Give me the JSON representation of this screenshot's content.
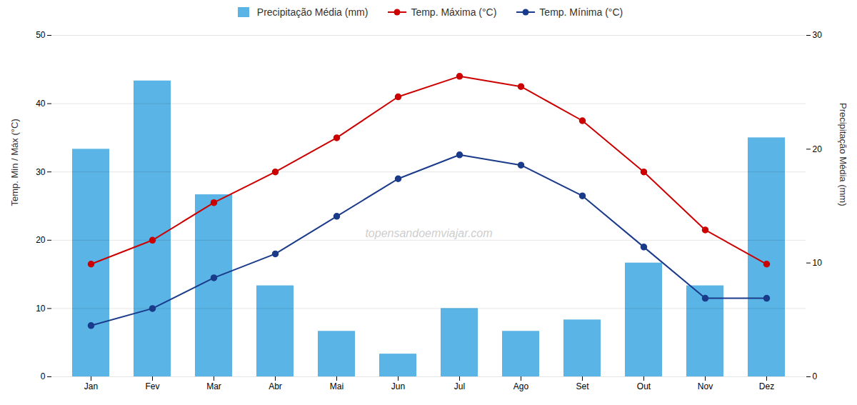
{
  "chart_data": {
    "type": "bar",
    "categories": [
      "Jan",
      "Fev",
      "Mar",
      "Abr",
      "Mai",
      "Jun",
      "Jul",
      "Ago",
      "Set",
      "Out",
      "Nov",
      "Dez"
    ],
    "series": [
      {
        "name": "Precipitação Média (mm)",
        "type": "bar",
        "axis": "y2",
        "color": "#5ab4e5",
        "values": [
          20,
          26,
          16,
          8,
          4,
          2,
          6,
          4,
          5,
          10,
          8,
          21
        ]
      },
      {
        "name": "Temp. Máxima (°C)",
        "type": "line",
        "marker": "circle",
        "color": "#cc0000",
        "values": [
          16.5,
          20,
          25.5,
          30,
          35,
          41,
          44,
          42.5,
          37.5,
          30,
          21.5,
          16.5
        ]
      },
      {
        "name": "Temp. Mínima (°C)",
        "type": "line",
        "marker": "circle",
        "color": "#1a3a8a",
        "values": [
          7.5,
          10,
          14.5,
          18,
          23.5,
          29,
          32.5,
          31,
          26.5,
          19,
          11.5,
          11.5
        ]
      }
    ],
    "ylabel": "Temp. Min / Máx (°C)",
    "y2label": "Precipitação Média (mm)",
    "ylim": [
      0,
      50
    ],
    "yticks": [
      0,
      10,
      20,
      30,
      40,
      50
    ],
    "y2lim": [
      0,
      30
    ],
    "y2ticks": [
      0,
      10,
      20,
      30
    ],
    "grid": true,
    "legend": "top",
    "annotations": [
      "topensandoemviajar.com"
    ]
  }
}
